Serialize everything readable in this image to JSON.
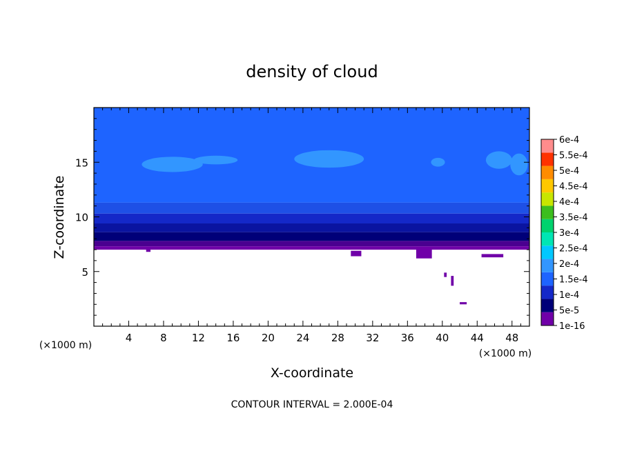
{
  "chart_data": {
    "type": "heatmap",
    "title": "density of cloud",
    "xlabel": "X-coordinate",
    "ylabel": "Z-coordinate",
    "x_unit_label": "(×1000 m)",
    "y_unit_label": "(×1000 m)",
    "xlim": [
      0,
      50
    ],
    "ylim": [
      0,
      20
    ],
    "x_ticks": [
      4,
      8,
      12,
      16,
      20,
      24,
      28,
      32,
      36,
      40,
      44,
      48
    ],
    "y_ticks": [
      5,
      10,
      15
    ],
    "footer": "CONTOUR INTERVAL = 2.000E-04",
    "colorbar": {
      "labels": [
        "1e-16",
        "5e-5",
        "1e-4",
        "1.5e-4",
        "2e-4",
        "2.5e-4",
        "3e-4",
        "3.5e-4",
        "4e-4",
        "4.5e-4",
        "5e-4",
        "5.5e-4",
        "6e-4"
      ],
      "colors": [
        "#7000a8",
        "#000078",
        "#1428c8",
        "#1e64ff",
        "#3296ff",
        "#00c8ff",
        "#00e6b4",
        "#00d26e",
        "#3cbe1e",
        "#c8e600",
        "#ffc800",
        "#ff8c00",
        "#ff3200",
        "#ff8c8c"
      ]
    },
    "bands": [
      {
        "z_bottom": 7.0,
        "z_top": 7.3,
        "color": "#7000a8"
      },
      {
        "z_bottom": 7.3,
        "z_top": 7.8,
        "color": "#4a0090"
      },
      {
        "z_bottom": 7.8,
        "z_top": 8.6,
        "color": "#000078"
      },
      {
        "z_bottom": 8.6,
        "z_top": 9.4,
        "color": "#0a14a0"
      },
      {
        "z_bottom": 9.4,
        "z_top": 10.3,
        "color": "#1428c8"
      },
      {
        "z_bottom": 10.3,
        "z_top": 11.3,
        "color": "#1e50e6"
      },
      {
        "z_bottom": 11.3,
        "z_top": 20.0,
        "color": "#1e64ff"
      }
    ],
    "patches_1_5e-4": [
      {
        "x": 9.0,
        "z": 14.8,
        "rx": 3.5,
        "rz": 0.7
      },
      {
        "x": 14.0,
        "z": 15.2,
        "rx": 2.5,
        "rz": 0.4
      },
      {
        "x": 27.0,
        "z": 15.3,
        "rx": 4.0,
        "rz": 0.8
      },
      {
        "x": 39.5,
        "z": 15.0,
        "rx": 0.8,
        "rz": 0.4
      },
      {
        "x": 46.5,
        "z": 15.2,
        "rx": 1.5,
        "rz": 0.8
      },
      {
        "x": 48.8,
        "z": 14.8,
        "rx": 1.0,
        "rz": 1.0
      }
    ],
    "drips_1e-16": [
      {
        "x": 6.0,
        "z": 6.8,
        "w": 0.5,
        "h": 0.3
      },
      {
        "x": 29.5,
        "z": 6.4,
        "w": 1.2,
        "h": 0.5
      },
      {
        "x": 37.0,
        "z": 6.2,
        "w": 1.8,
        "h": 0.9
      },
      {
        "x": 40.2,
        "z": 4.5,
        "w": 0.3,
        "h": 0.4
      },
      {
        "x": 41.0,
        "z": 3.7,
        "w": 0.3,
        "h": 0.9
      },
      {
        "x": 42.0,
        "z": 2.0,
        "w": 0.8,
        "h": 0.2
      },
      {
        "x": 44.5,
        "z": 6.3,
        "w": 2.5,
        "h": 0.3
      }
    ]
  }
}
